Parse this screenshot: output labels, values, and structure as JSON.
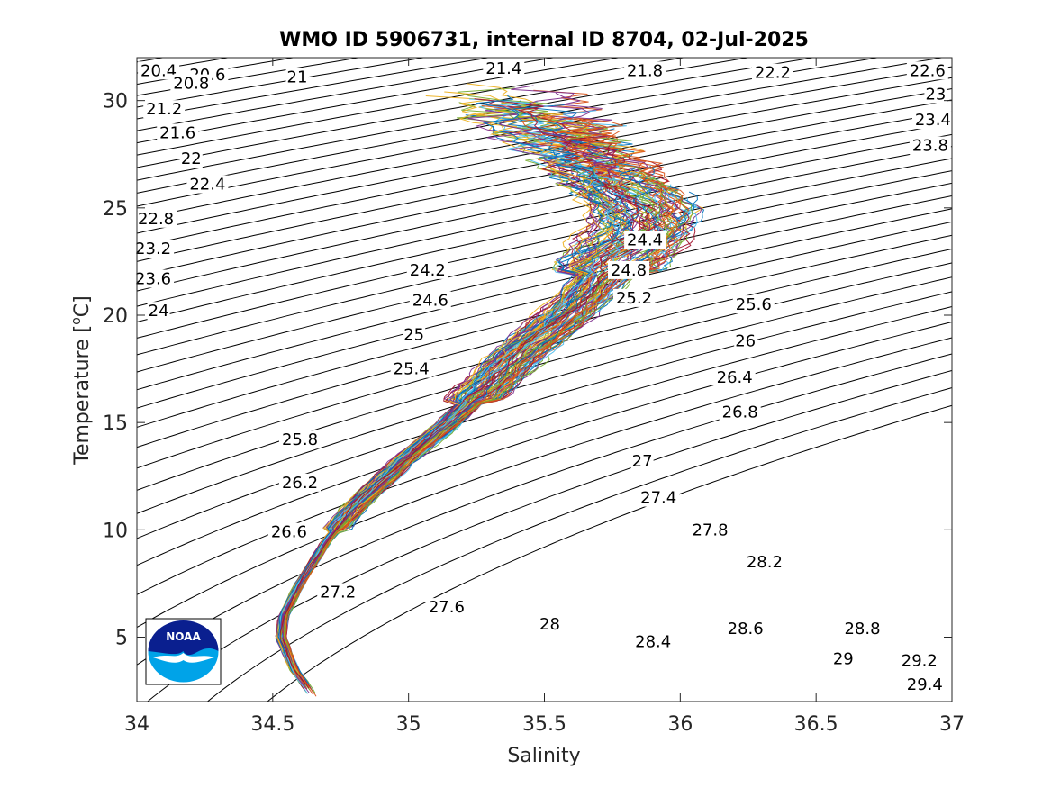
{
  "chart_data": {
    "type": "line",
    "title": "WMO ID 5906731, internal ID 8704, 02-Jul-2025",
    "xlabel": "Salinity",
    "ylabel_prefix": "Temperature [",
    "ylabel_sup": "o",
    "ylabel_suffix": "C]",
    "xlim": [
      34,
      37
    ],
    "ylim": [
      2,
      32
    ],
    "xticks": [
      {
        "value": 34,
        "label": "34"
      },
      {
        "value": 34.5,
        "label": "34.5"
      },
      {
        "value": 35,
        "label": "35"
      },
      {
        "value": 35.5,
        "label": "35.5"
      },
      {
        "value": 36,
        "label": "36"
      },
      {
        "value": 36.5,
        "label": "36.5"
      },
      {
        "value": 37,
        "label": "37"
      }
    ],
    "yticks": [
      {
        "value": 5,
        "label": "5"
      },
      {
        "value": 10,
        "label": "10"
      },
      {
        "value": 15,
        "label": "15"
      },
      {
        "value": 20,
        "label": "20"
      },
      {
        "value": 25,
        "label": "25"
      },
      {
        "value": 30,
        "label": "30"
      }
    ],
    "grid": false,
    "density_contours": {
      "start": 20.4,
      "end": 29.4,
      "step": 0.2,
      "label_every": 0.2,
      "labels": [
        {
          "text": "20.4",
          "s": 34.08,
          "t": 31.4
        },
        {
          "text": "20.6",
          "s": 34.26,
          "t": 31.2
        },
        {
          "text": "20.8",
          "s": 34.2,
          "t": 30.8
        },
        {
          "text": "21",
          "s": 34.59,
          "t": 31.1
        },
        {
          "text": "21.2",
          "s": 34.1,
          "t": 29.6
        },
        {
          "text": "21.4",
          "s": 35.35,
          "t": 31.5
        },
        {
          "text": "21.6",
          "s": 34.15,
          "t": 28.5
        },
        {
          "text": "21.8",
          "s": 35.87,
          "t": 31.4
        },
        {
          "text": "22",
          "s": 34.2,
          "t": 27.3
        },
        {
          "text": "22.2",
          "s": 36.34,
          "t": 31.3
        },
        {
          "text": "22.4",
          "s": 34.26,
          "t": 26.1
        },
        {
          "text": "22.6",
          "s": 36.91,
          "t": 31.4
        },
        {
          "text": "22.8",
          "s": 34.07,
          "t": 24.5
        },
        {
          "text": "23",
          "s": 36.94,
          "t": 30.3
        },
        {
          "text": "23.2",
          "s": 34.06,
          "t": 23.1
        },
        {
          "text": "23.4",
          "s": 36.93,
          "t": 29.1
        },
        {
          "text": "23.6",
          "s": 34.06,
          "t": 21.7
        },
        {
          "text": "23.8",
          "s": 36.92,
          "t": 27.9
        },
        {
          "text": "24",
          "s": 34.08,
          "t": 20.2
        },
        {
          "text": "24.2",
          "s": 35.07,
          "t": 22.1
        },
        {
          "text": "24.4",
          "s": 35.87,
          "t": 23.5
        },
        {
          "text": "24.6",
          "s": 35.08,
          "t": 20.7
        },
        {
          "text": "24.8",
          "s": 35.81,
          "t": 22.1
        },
        {
          "text": "25",
          "s": 35.02,
          "t": 19.1
        },
        {
          "text": "25.2",
          "s": 35.83,
          "t": 20.8
        },
        {
          "text": "25.4",
          "s": 35.01,
          "t": 17.5
        },
        {
          "text": "25.6",
          "s": 36.27,
          "t": 20.5
        },
        {
          "text": "25.8",
          "s": 34.6,
          "t": 14.2
        },
        {
          "text": "26",
          "s": 36.24,
          "t": 18.8
        },
        {
          "text": "26.2",
          "s": 34.6,
          "t": 12.2
        },
        {
          "text": "26.4",
          "s": 36.2,
          "t": 17.1
        },
        {
          "text": "26.6",
          "s": 34.56,
          "t": 9.9
        },
        {
          "text": "26.8",
          "s": 36.22,
          "t": 15.5
        },
        {
          "text": "27",
          "s": 35.86,
          "t": 13.2
        },
        {
          "text": "27.2",
          "s": 34.74,
          "t": 7.1
        },
        {
          "text": "27.4",
          "s": 35.92,
          "t": 11.5
        },
        {
          "text": "27.6",
          "s": 35.14,
          "t": 6.4
        },
        {
          "text": "27.8",
          "s": 36.11,
          "t": 10.0
        },
        {
          "text": "28",
          "s": 35.52,
          "t": 5.6
        },
        {
          "text": "28.2",
          "s": 36.31,
          "t": 8.5
        },
        {
          "text": "28.4",
          "s": 35.9,
          "t": 4.8
        },
        {
          "text": "28.6",
          "s": 36.24,
          "t": 5.4
        },
        {
          "text": "28.8",
          "s": 36.67,
          "t": 5.4
        },
        {
          "text": "29",
          "s": 36.6,
          "t": 4.0
        },
        {
          "text": "29.2",
          "s": 36.88,
          "t": 3.9
        },
        {
          "text": "29.4",
          "s": 36.9,
          "t": 2.8
        }
      ]
    },
    "profiles": {
      "count": 100,
      "colors": [
        "#0072bd",
        "#d95319",
        "#edb120",
        "#7e2f8e",
        "#77ac30",
        "#4dbeee",
        "#a2142f"
      ],
      "mean_curve": [
        {
          "s": 34.65,
          "t": 2.2
        },
        {
          "s": 34.58,
          "t": 3.5
        },
        {
          "s": 34.53,
          "t": 5.0
        },
        {
          "s": 34.54,
          "t": 6.0
        },
        {
          "s": 34.6,
          "t": 7.5
        },
        {
          "s": 34.7,
          "t": 9.5
        },
        {
          "s": 34.82,
          "t": 11.3
        },
        {
          "s": 34.98,
          "t": 13.2
        },
        {
          "s": 35.15,
          "t": 15.0
        },
        {
          "s": 35.3,
          "t": 16.8
        },
        {
          "s": 35.42,
          "t": 18.3
        },
        {
          "s": 35.55,
          "t": 19.7
        },
        {
          "s": 35.66,
          "t": 21.0
        },
        {
          "s": 35.75,
          "t": 22.5
        },
        {
          "s": 35.85,
          "t": 24.0
        },
        {
          "s": 35.87,
          "t": 25.0
        },
        {
          "s": 35.82,
          "t": 26.0
        },
        {
          "s": 35.72,
          "t": 27.3
        },
        {
          "s": 35.62,
          "t": 28.8
        },
        {
          "s": 35.55,
          "t": 30.0
        },
        {
          "s": 35.5,
          "t": 30.6
        }
      ]
    }
  },
  "logo": {
    "name": "NOAA",
    "text": "NOAA",
    "colors": {
      "navy": "#0a1f8f",
      "sky": "#00a3e8",
      "white": "#ffffff"
    }
  }
}
